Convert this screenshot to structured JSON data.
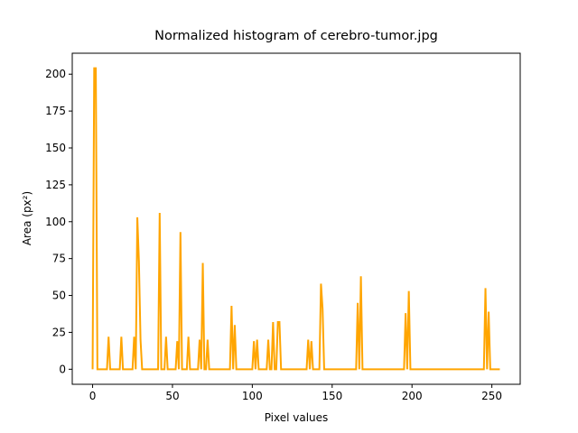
{
  "chart_data": {
    "type": "line",
    "title": "Normalized histogram of cerebro-tumor.jpg",
    "x_label": "Pixel values",
    "y_label": "Area (px²)",
    "xlim": [
      -12.75,
      267.75
    ],
    "ylim": [
      -10.2,
      214.2
    ],
    "xticks": [
      0,
      50,
      100,
      150,
      200,
      250
    ],
    "yticks": [
      0,
      25,
      50,
      75,
      100,
      125,
      150,
      175,
      200
    ],
    "grid": false,
    "series": [
      {
        "color": "#ffa500",
        "x": [
          0,
          1,
          2,
          3,
          9,
          10,
          11,
          17,
          18,
          19,
          25,
          26,
          27,
          28,
          29,
          30,
          31,
          41,
          42,
          43,
          45,
          46,
          47,
          52,
          53,
          54,
          55,
          56,
          59,
          60,
          61,
          66,
          67,
          68,
          69,
          70,
          71,
          72,
          73,
          86,
          87,
          88,
          89,
          90,
          100,
          101,
          102,
          103,
          104,
          109,
          110,
          111,
          112,
          113,
          114,
          115,
          116,
          117,
          118,
          134,
          135,
          136,
          137,
          138,
          142,
          143,
          144,
          145,
          165,
          166,
          167,
          168,
          169,
          195,
          196,
          197,
          198,
          199,
          245,
          246,
          247,
          248,
          249,
          255
        ],
        "values": [
          0,
          204,
          204,
          0,
          0,
          22,
          0,
          0,
          22,
          0,
          0,
          22,
          0,
          103,
          73,
          20,
          0,
          0,
          106,
          0,
          0,
          22,
          0,
          0,
          19,
          0,
          93,
          0,
          0,
          22,
          0,
          0,
          20,
          0,
          72,
          0,
          0,
          20,
          0,
          0,
          43,
          0,
          30,
          0,
          0,
          19,
          0,
          20,
          0,
          0,
          20,
          0,
          0,
          32,
          0,
          0,
          32,
          32,
          0,
          0,
          20,
          0,
          19,
          0,
          0,
          58,
          41,
          0,
          0,
          45,
          0,
          63,
          0,
          0,
          38,
          0,
          53,
          0,
          0,
          55,
          0,
          39,
          0,
          0
        ]
      }
    ]
  }
}
